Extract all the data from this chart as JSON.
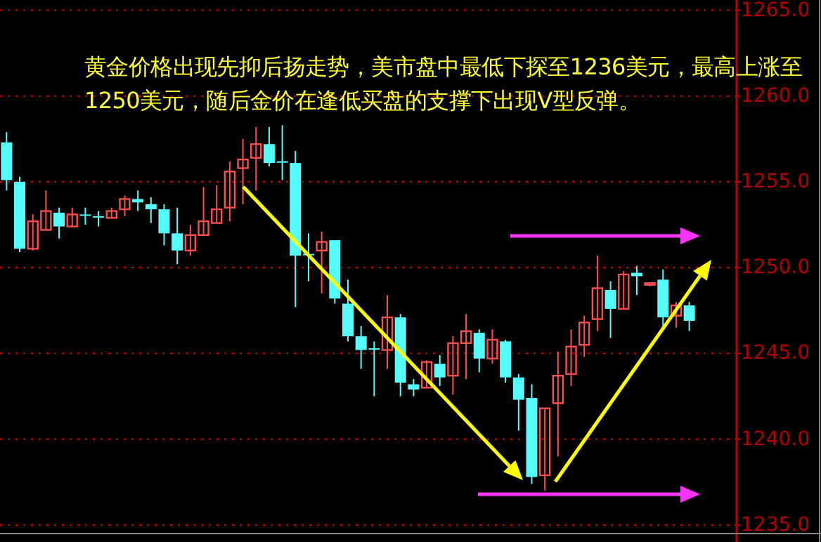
{
  "chart_data": {
    "type": "candlestick",
    "annotations": [
      "黄金价格出现先抑后扬走势，美市盘中最低下探至1236美元，最高上涨至1250美元，随后金价在逢低买盘的支撑下出现V型反弹。"
    ],
    "categories": [
      null,
      null,
      null,
      null,
      null,
      null,
      null,
      null,
      null,
      null,
      null,
      null,
      null,
      null,
      null,
      null,
      null,
      null,
      null,
      null,
      null,
      null,
      null,
      null,
      null,
      null,
      null,
      null,
      null,
      null,
      null,
      null,
      null,
      null,
      null,
      null,
      null,
      null,
      null,
      null,
      null,
      null,
      null,
      null,
      null,
      null,
      null,
      null,
      null,
      null,
      null,
      null,
      null,
      null,
      null,
      null
    ],
    "ohlc": [
      [
        1257.3,
        1257.9,
        1254.5,
        1255.1
      ],
      [
        1255.0,
        1255.3,
        1250.9,
        1251.1
      ],
      [
        1251.1,
        1253.1,
        1251.0,
        1252.7
      ],
      [
        1252.2,
        1254.5,
        1252.2,
        1253.3
      ],
      [
        1253.2,
        1253.5,
        1251.7,
        1252.4
      ],
      [
        1252.4,
        1253.5,
        1252.4,
        1253.1
      ],
      [
        1253.1,
        1253.5,
        1252.5,
        1253.1
      ],
      [
        1253.0,
        1253.3,
        1252.4,
        1253.0
      ],
      [
        1252.9,
        1253.5,
        1252.9,
        1253.3
      ],
      [
        1253.4,
        1254.2,
        1253.0,
        1254.0
      ],
      [
        1254.0,
        1254.5,
        1253.3,
        1253.8
      ],
      [
        1253.7,
        1254.1,
        1252.6,
        1253.4
      ],
      [
        1253.4,
        1253.7,
        1251.3,
        1252.0
      ],
      [
        1252.0,
        1253.5,
        1250.2,
        1251.0
      ],
      [
        1251.0,
        1252.5,
        1250.7,
        1251.9
      ],
      [
        1251.9,
        1254.7,
        1251.9,
        1252.7
      ],
      [
        1252.6,
        1254.8,
        1252.6,
        1253.4
      ],
      [
        1253.5,
        1256.2,
        1252.7,
        1255.6
      ],
      [
        1255.8,
        1257.5,
        1253.7,
        1256.3
      ],
      [
        1256.4,
        1258.2,
        1254.5,
        1257.2
      ],
      [
        1257.2,
        1258.2,
        1255.9,
        1256.1
      ],
      [
        1256.2,
        1258.3,
        1255.1,
        1256.2
      ],
      [
        1256.1,
        1256.8,
        1247.7,
        1250.7
      ],
      [
        1250.8,
        1252.0,
        1249.2,
        1250.8
      ],
      [
        1251.0,
        1252.1,
        1248.5,
        1251.5
      ],
      [
        1251.6,
        1251.6,
        1247.9,
        1248.2
      ],
      [
        1247.9,
        1249.3,
        1245.7,
        1246.0
      ],
      [
        1246.0,
        1246.6,
        1244.1,
        1245.2
      ],
      [
        1245.3,
        1245.7,
        1242.5,
        1245.3
      ],
      [
        1245.2,
        1248.4,
        1244.1,
        1247.1
      ],
      [
        1247.1,
        1247.3,
        1242.5,
        1243.3
      ],
      [
        1243.2,
        1243.5,
        1242.5,
        1242.9
      ],
      [
        1243.0,
        1244.6,
        1243.0,
        1244.5
      ],
      [
        1244.4,
        1244.9,
        1243.1,
        1243.6
      ],
      [
        1243.7,
        1246.0,
        1242.6,
        1245.6
      ],
      [
        1245.6,
        1247.3,
        1243.5,
        1246.3
      ],
      [
        1246.2,
        1246.4,
        1243.9,
        1244.7
      ],
      [
        1244.7,
        1246.4,
        1244.4,
        1245.8
      ],
      [
        1245.7,
        1245.8,
        1243.3,
        1243.6
      ],
      [
        1243.6,
        1243.8,
        1240.5,
        1242.3
      ],
      [
        1242.4,
        1243.2,
        1237.4,
        1237.8
      ],
      [
        1237.9,
        1241.8,
        1237.0,
        1241.8
      ],
      [
        1242.1,
        1245.1,
        1239.0,
        1243.7
      ],
      [
        1243.8,
        1246.4,
        1243.1,
        1245.4
      ],
      [
        1245.5,
        1247.2,
        1244.8,
        1246.8
      ],
      [
        1247.0,
        1250.7,
        1246.3,
        1248.8
      ],
      [
        1248.7,
        1249.2,
        1245.9,
        1247.6
      ],
      [
        1247.6,
        1249.8,
        1247.6,
        1249.6
      ],
      [
        1249.7,
        1250.1,
        1248.4,
        1249.5
      ],
      [
        1249.0,
        1249.1,
        1248.9,
        1249.1
      ],
      [
        1249.3,
        1249.9,
        1246.5,
        1247.1
      ],
      [
        1247.2,
        1248.0,
        1246.5,
        1247.8
      ],
      [
        1247.8,
        1248.0,
        1246.3,
        1246.9
      ],
      null,
      null,
      null
    ],
    "ylim": [
      1234.5,
      1265.6
    ],
    "yticks": [
      {
        "value": 1235,
        "label": "1235.0"
      },
      {
        "value": 1240,
        "label": "1240.0"
      },
      {
        "value": 1245,
        "label": "1245.0"
      },
      {
        "value": 1250,
        "label": "1250.0"
      },
      {
        "value": 1255,
        "label": "1255.0"
      },
      {
        "value": 1260,
        "label": "1260.0"
      },
      {
        "value": 1265,
        "label": "1265.0"
      }
    ],
    "grid": "y"
  }
}
